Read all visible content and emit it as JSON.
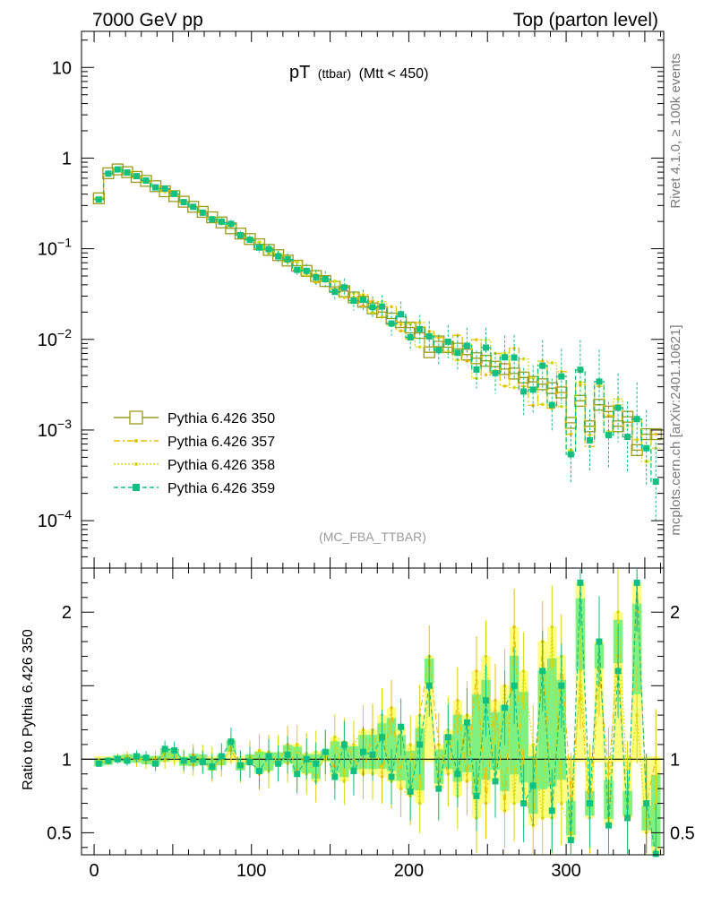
{
  "header": {
    "left": "7000 GeV pp",
    "right": "Top (parton level)"
  },
  "side_labels": {
    "rivet": "Rivet 4.1.0, ≥ 100k events",
    "mcplots": "mcplots.cern.ch [arXiv:2401.10621]"
  },
  "colors": {
    "py350": "#9a9a1a",
    "py357": "#e6c100",
    "py358": "#d7d700",
    "py359": "#10c080",
    "band_yellow": "#ffff80",
    "band_green": "#80f080"
  },
  "chart_data": {
    "type": "line",
    "title_main": "pT",
    "title_small": "(ttbar)",
    "title_cut": "(Mtt < 450)",
    "watermark": "(MC_FBA_TTBAR)",
    "xlim": [
      -8,
      362
    ],
    "ylim_log": [
      3e-05,
      25
    ],
    "ratio_ylim": [
      0.35,
      2.3
    ],
    "ylabel_ratio": "Ratio to Pythia 6.426 350",
    "x_ticks": [
      0,
      100,
      200,
      300
    ],
    "x_tick_labels": [
      "0",
      "100",
      "200",
      "300"
    ],
    "y_ticks": [
      {
        "value": 10,
        "base": "10",
        "exp": ""
      },
      {
        "value": 1,
        "base": "1",
        "exp": ""
      },
      {
        "value": 0.1,
        "base": "10",
        "exp": "−1"
      },
      {
        "value": 0.01,
        "base": "10",
        "exp": "−2"
      },
      {
        "value": 0.001,
        "base": "10",
        "exp": "−3"
      },
      {
        "value": 0.0001,
        "base": "10",
        "exp": "−4"
      }
    ],
    "ratio_ticks": [
      {
        "value": 2,
        "label": "2"
      },
      {
        "value": 1,
        "label": "1"
      },
      {
        "value": 0.5,
        "label": "0.5"
      }
    ],
    "bin_width": 6,
    "x_centers": [
      3,
      9,
      15,
      21,
      27,
      33,
      39,
      45,
      51,
      57,
      63,
      69,
      75,
      81,
      87,
      93,
      99,
      105,
      111,
      117,
      123,
      129,
      135,
      141,
      147,
      153,
      159,
      165,
      171,
      177,
      183,
      189,
      195,
      201,
      207,
      213,
      219,
      225,
      231,
      237,
      243,
      249,
      255,
      261,
      267,
      273,
      279,
      285,
      291,
      297,
      303,
      309,
      315,
      321,
      327,
      333,
      339,
      345,
      351,
      357
    ],
    "series": [
      {
        "name": "Pythia 6.426 350",
        "values": [
          0.36,
          0.68,
          0.75,
          0.7,
          0.62,
          0.56,
          0.49,
          0.43,
          0.38,
          0.33,
          0.29,
          0.255,
          0.222,
          0.195,
          0.168,
          0.147,
          0.128,
          0.112,
          0.097,
          0.085,
          0.074,
          0.065,
          0.057,
          0.05,
          0.044,
          0.038,
          0.034,
          0.029,
          0.026,
          0.022,
          0.02,
          0.017,
          0.0155,
          0.0135,
          0.0118,
          0.0072,
          0.0095,
          0.0082,
          0.0079,
          0.0068,
          0.0062,
          0.0058,
          0.005,
          0.0047,
          0.0042,
          0.0038,
          0.0034,
          0.0032,
          0.0029,
          0.0026,
          0.0012,
          0.0021,
          0.0011,
          0.0019,
          0.0016,
          0.0011,
          0.0014,
          0.0006,
          0.0009,
          0.0009
        ]
      },
      {
        "name": "Pythia 6.426 357",
        "ratio": [
          0.97,
          0.99,
          1.0,
          1.02,
          0.99,
          1.01,
          0.98,
          1.04,
          1.02,
          0.97,
          1.03,
          0.98,
          0.93,
          1.0,
          1.06,
          0.95,
          1.02,
          0.9,
          1.05,
          0.98,
          1.1,
          0.92,
          1.04,
          0.85,
          1.05,
          0.95,
          1.12,
          1.0,
          0.9,
          1.2,
          0.88,
          1.35,
          0.8,
          0.75,
          1.3,
          1.7,
          1.1,
          0.9,
          1.4,
          0.85,
          1.6,
          0.7,
          1.4,
          0.65,
          1.9,
          0.8,
          0.55,
          1.8,
          0.6,
          1.7,
          0.75,
          1.5,
          0.6,
          1.6,
          0.9,
          1.7,
          0.6,
          2.2,
          0.7,
          1.0
        ]
      },
      {
        "name": "Pythia 6.426 358",
        "ratio": [
          0.99,
          0.98,
          1.01,
          1.0,
          1.02,
          0.98,
          1.01,
          0.99,
          1.03,
          1.0,
          0.96,
          1.02,
          1.0,
          0.97,
          1.08,
          0.94,
          0.98,
          1.06,
          0.92,
          1.04,
          0.97,
          1.1,
          0.9,
          1.05,
          1.0,
          1.15,
          0.85,
          1.1,
          1.2,
          0.9,
          1.3,
          0.85,
          0.95,
          1.1,
          0.7,
          1.5,
          0.8,
          1.2,
          0.75,
          1.3,
          0.6,
          1.7,
          0.9,
          1.5,
          0.7,
          1.6,
          1.1,
          0.6,
          1.9,
          0.7,
          0.5,
          1.6,
          0.8,
          1.7,
          0.6,
          2.0,
          0.8,
          1.3,
          0.5,
          0.7
        ]
      },
      {
        "name": "Pythia 6.426 359",
        "ratio": [
          0.97,
          0.99,
          1.0,
          0.99,
          1.02,
          1.01,
          0.97,
          1.07,
          1.06,
          0.99,
          1.0,
          0.98,
          0.95,
          1.02,
          1.12,
          0.96,
          0.98,
          0.92,
          1.02,
          0.97,
          1.03,
          0.9,
          1.0,
          0.97,
          1.05,
          0.88,
          1.1,
          0.92,
          1.05,
          1.03,
          1.15,
          0.88,
          1.22,
          0.78,
          1.1,
          1.5,
          0.8,
          1.15,
          0.9,
          1.25,
          0.75,
          1.4,
          0.85,
          1.35,
          1.5,
          0.7,
          0.82,
          1.6,
          0.65,
          1.5,
          0.45,
          2.2,
          0.7,
          1.8,
          0.55,
          1.6,
          0.6,
          2.2,
          0.7,
          0.3
        ]
      }
    ],
    "legend": [
      {
        "label": "Pythia 6.426 350",
        "style": "open-square-solid",
        "color": "#9a9a1a"
      },
      {
        "label": "Pythia 6.426 357",
        "style": "dashdot-tri",
        "color": "#e6c100"
      },
      {
        "label": "Pythia 6.426 358",
        "style": "dotted-dot",
        "color": "#d7d700"
      },
      {
        "label": "Pythia 6.426 359",
        "style": "dashed-filled-square",
        "color": "#10c080"
      }
    ]
  }
}
